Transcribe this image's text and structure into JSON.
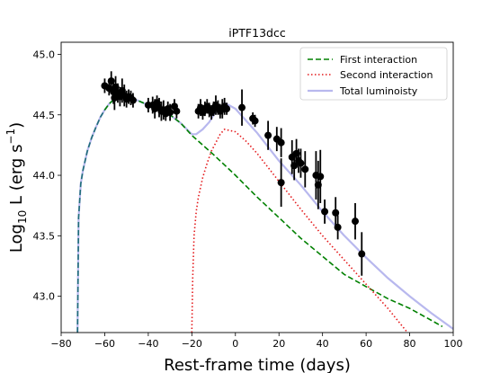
{
  "chart_data": {
    "type": "line",
    "title": "iPTF13dcc",
    "xlabel": "Rest-frame time (days)",
    "ylabel": "Log10 L (erg s^-1)",
    "ylabel_parts": {
      "base": "Log",
      "sub": "10",
      "mid": " L (erg s",
      "sup": "−1",
      "end": ")"
    },
    "xlim": [
      -80,
      100
    ],
    "ylim": [
      42.7,
      45.1
    ],
    "xticks": [
      -80,
      -60,
      -40,
      -20,
      0,
      20,
      40,
      60,
      80,
      100
    ],
    "xtick_labels": [
      "−80",
      "−60",
      "−40",
      "−20",
      "0",
      "20",
      "40",
      "60",
      "80",
      "100"
    ],
    "yticks": [
      43.0,
      43.5,
      44.0,
      44.5,
      45.0
    ],
    "ytick_labels": [
      "43.0",
      "43.5",
      "44.0",
      "44.5",
      "45.0"
    ],
    "legend_position": "upper-right",
    "colors": {
      "first": "#008000",
      "second": "#e41a1c",
      "total": "#b8b8ee",
      "teal": "#1f6e78",
      "points": "#000000"
    },
    "series": [
      {
        "name": "First interaction",
        "style": "dashed",
        "x": [
          -72.5,
          -72.3,
          -72,
          -71,
          -70,
          -68,
          -66,
          -64,
          -62,
          -60,
          -58,
          -55,
          -50,
          -45,
          -40,
          -35,
          -30,
          -25,
          -20,
          -10,
          0,
          10,
          20,
          30,
          40,
          50,
          60,
          70,
          80,
          90,
          95
        ],
        "y": [
          42.7,
          43.1,
          43.65,
          43.93,
          44.04,
          44.2,
          44.31,
          44.4,
          44.48,
          44.54,
          44.59,
          44.64,
          44.65,
          44.62,
          44.58,
          44.54,
          44.5,
          44.43,
          44.33,
          44.17,
          44.0,
          43.82,
          43.65,
          43.48,
          43.33,
          43.18,
          43.08,
          42.98,
          42.9,
          42.8,
          42.75
        ]
      },
      {
        "name": "Second interaction",
        "style": "dotted",
        "x": [
          -20,
          -19.6,
          -19,
          -18,
          -17,
          -15,
          -13,
          -11,
          -9,
          -7,
          -5,
          0,
          5,
          10,
          20,
          30,
          40,
          50,
          60,
          70,
          79
        ],
        "y": [
          42.7,
          43.15,
          43.5,
          43.7,
          43.82,
          43.98,
          44.1,
          44.2,
          44.27,
          44.34,
          44.38,
          44.36,
          44.28,
          44.18,
          43.95,
          43.72,
          43.5,
          43.3,
          43.1,
          42.9,
          42.7
        ]
      },
      {
        "name": "Total luminoisty",
        "style": "solid",
        "x": [
          -72.5,
          -72.3,
          -72,
          -71,
          -70,
          -68,
          -66,
          -64,
          -62,
          -60,
          -58,
          -55,
          -50,
          -45,
          -40,
          -35,
          -30,
          -25,
          -20,
          -18,
          -15,
          -12,
          -10,
          -8,
          -6,
          -5,
          0,
          5,
          10,
          20,
          30,
          40,
          50,
          60,
          70,
          80,
          90,
          100
        ],
        "y": [
          42.7,
          43.1,
          43.65,
          43.93,
          44.04,
          44.2,
          44.31,
          44.4,
          44.48,
          44.54,
          44.59,
          44.64,
          44.65,
          44.62,
          44.58,
          44.54,
          44.5,
          44.43,
          44.34,
          44.34,
          44.38,
          44.44,
          44.5,
          44.55,
          44.57,
          44.6,
          44.55,
          44.45,
          44.35,
          44.12,
          43.92,
          43.7,
          43.5,
          43.32,
          43.15,
          43.0,
          42.86,
          42.73
        ]
      }
    ],
    "observations": {
      "points": [
        [
          -60,
          44.74,
          0.06
        ],
        [
          -58,
          44.72,
          0.06
        ],
        [
          -57,
          44.78,
          0.08
        ],
        [
          -56,
          44.69,
          0.1
        ],
        [
          -55.5,
          44.64,
          0.1
        ],
        [
          -55,
          44.73,
          0.09
        ],
        [
          -54,
          44.68,
          0.08
        ],
        [
          -53,
          44.65,
          0.08
        ],
        [
          -52,
          44.7,
          0.1
        ],
        [
          -51,
          44.66,
          0.09
        ],
        [
          -50,
          44.63,
          0.07
        ],
        [
          -49,
          44.65,
          0.06
        ],
        [
          -48,
          44.64,
          0.06
        ],
        [
          -47,
          44.62,
          0.06
        ],
        [
          -40,
          44.58,
          0.06
        ],
        [
          -38,
          44.58,
          0.07
        ],
        [
          -37,
          44.55,
          0.08
        ],
        [
          -36,
          44.6,
          0.06
        ],
        [
          -35,
          44.56,
          0.08
        ],
        [
          -34,
          44.53,
          0.08
        ],
        [
          -33,
          44.54,
          0.08
        ],
        [
          -32,
          44.51,
          0.06
        ],
        [
          -31,
          44.55,
          0.06
        ],
        [
          -30,
          44.52,
          0.07
        ],
        [
          -28,
          44.57,
          0.06
        ],
        [
          -27,
          44.53,
          0.06
        ],
        [
          -17,
          44.53,
          0.06
        ],
        [
          -16,
          44.56,
          0.07
        ],
        [
          -15,
          44.52,
          0.06
        ],
        [
          -14,
          44.55,
          0.06
        ],
        [
          -13,
          44.57,
          0.06
        ],
        [
          -12,
          44.54,
          0.06
        ],
        [
          -11,
          44.52,
          0.06
        ],
        [
          -10,
          44.55,
          0.06
        ],
        [
          -9,
          44.58,
          0.08
        ],
        [
          -8,
          44.56,
          0.06
        ],
        [
          -7,
          44.53,
          0.06
        ],
        [
          -6,
          44.55,
          0.08
        ],
        [
          -5,
          44.57,
          0.07
        ],
        [
          -4,
          44.55,
          0.05
        ],
        [
          3,
          44.56,
          0.15
        ],
        [
          8,
          44.47,
          0.05
        ],
        [
          9,
          44.45,
          0.05
        ],
        [
          15,
          44.33,
          0.12
        ],
        [
          19,
          44.3,
          0.1
        ],
        [
          21,
          44.27,
          0.12
        ],
        [
          21,
          43.94,
          0.2
        ],
        [
          26,
          44.15,
          0.14
        ],
        [
          27,
          44.08,
          0.12
        ],
        [
          28,
          44.18,
          0.12
        ],
        [
          29,
          44.12,
          0.1
        ],
        [
          30,
          44.1,
          0.12
        ],
        [
          32,
          44.05,
          0.15
        ],
        [
          37,
          44.0,
          0.2
        ],
        [
          38,
          43.92,
          0.2
        ],
        [
          39,
          43.99,
          0.22
        ],
        [
          41,
          43.7,
          0.1
        ],
        [
          46,
          43.69,
          0.13
        ],
        [
          47,
          43.57,
          0.1
        ],
        [
          55,
          43.62,
          0.15
        ],
        [
          58,
          43.35,
          0.18
        ]
      ]
    }
  }
}
